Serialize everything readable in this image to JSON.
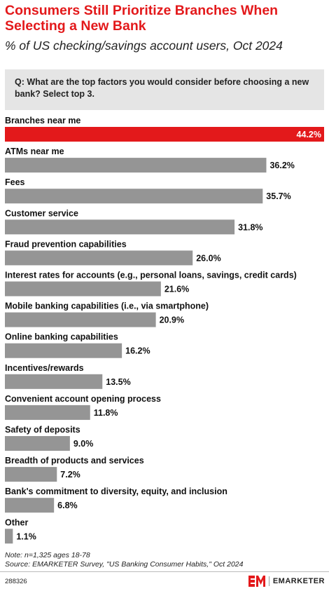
{
  "title": "Consumers Still Prioritize Branches When Selecting a New Bank",
  "subtitle": "% of US checking/savings account users, Oct 2024",
  "question": "Q: What are the top factors you would consider before choosing a new bank? Select top 3.",
  "chart_data": {
    "type": "bar",
    "orientation": "horizontal",
    "categories": [
      "Branches near me",
      "ATMs near me",
      "Fees",
      "Customer service",
      "Fraud prevention capabilities",
      "Interest rates for accounts (e.g., personal loans, savings, credit cards)",
      "Mobile banking capabilities (i.e., via smartphone)",
      "Online banking capabilities",
      "Incentives/rewards",
      "Convenient account opening process",
      "Safety of deposits",
      "Breadth of products and services",
      "Bank's commitment to diversity, equity, and inclusion",
      "Other"
    ],
    "values": [
      44.2,
      36.2,
      35.7,
      31.8,
      26.0,
      21.6,
      20.9,
      16.2,
      13.5,
      11.8,
      9.0,
      7.2,
      6.8,
      1.1
    ],
    "value_labels": [
      "44.2%",
      "36.2%",
      "35.7%",
      "31.8%",
      "26.0%",
      "21.6%",
      "20.9%",
      "16.2%",
      "13.5%",
      "11.8%",
      "9.0%",
      "7.2%",
      "6.8%",
      "1.1%"
    ],
    "xlim": [
      0,
      44.2
    ],
    "highlight_color": "#e3191b",
    "bar_color": "#959595"
  },
  "note": "Note: n=1,325 ages 18-78",
  "source": "Source: EMARKETER Survey, \"US Banking Consumer Habits,\" Oct 2024",
  "chart_id": "288326",
  "brand": "EMARKETER",
  "brand_color": "#e3191b"
}
